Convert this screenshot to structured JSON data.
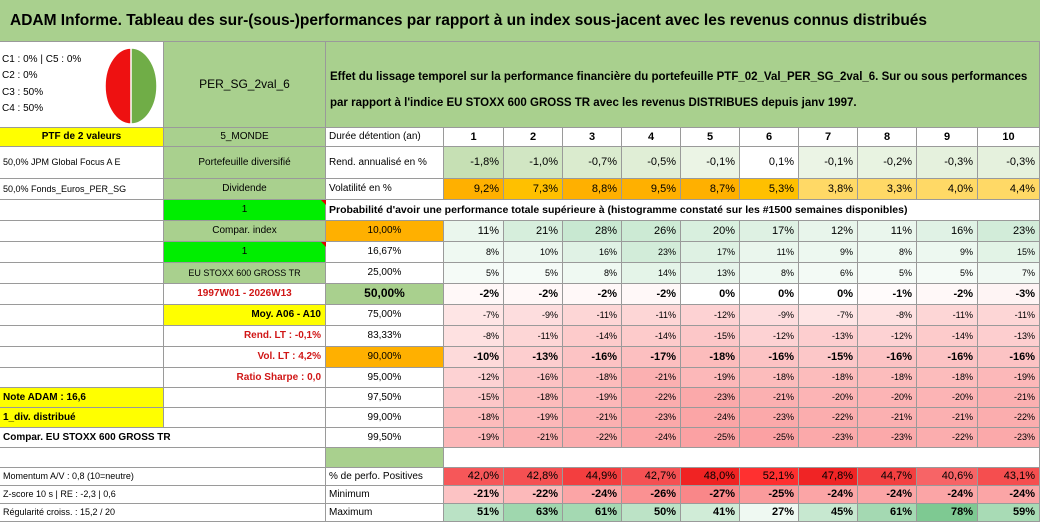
{
  "title": "ADAM Informe. Tableau des sur-(sous-)performances par rapport à un index sous-jacent avec les revenus connus distribués",
  "left": {
    "legend": [
      "C1 : 0% | C5 : 0%",
      "C2 : 0%",
      "C3 : 50%",
      "C4 : 50%"
    ],
    "portfolio_name": "PER_SG_2val_6",
    "ptf_label": "PTF de 2 valeurs",
    "zone": "5_MONDE",
    "holdings": [
      "50,0% JPM Global Focus A E",
      "50,0% Fonds_Euros_PER_SG"
    ],
    "type_label": "Portefeuille diversifié",
    "dividend_label": "Dividende",
    "one_a": "1",
    "compar_index": "Compar. index",
    "one_b": "1",
    "index_name": "EU STOXX 600 GROSS TR",
    "period": "1997W01 - 2026W13",
    "moy": "Moy. A06 - A10",
    "rend_lt": "Rend. LT : -0,1%",
    "vol_lt": "Vol. LT : 4,2%",
    "sharpe": "Ratio Sharpe : 0,0",
    "note": "Note ADAM : 16,6",
    "div": "1_div. distribué",
    "compar_full": "Compar. EU STOXX 600 GROSS TR",
    "momentum": "Momentum A/V : 0,8 (10=neutre)",
    "zscore": "Z-score 10 s | RE : -2,3 | 0,6",
    "regularite": "Régularité croiss. : 15,2 / 20"
  },
  "pie": {
    "red_share": 0.5,
    "red_color": "#ee1111",
    "green_color": "#70ad47"
  },
  "description": "Effet du lissage temporel sur la performance financière du portefeuille PTF_02_Val_PER_SG_2val_6. Sur ou sous performances par rapport à l'indice EU STOXX 600 GROSS TR avec les revenus DISTRIBUES depuis janv 1997.",
  "duration_label": "Durée détention (an)",
  "years": [
    "1",
    "2",
    "3",
    "4",
    "5",
    "6",
    "7",
    "8",
    "9",
    "10"
  ],
  "rend_label": "Rend. annualisé en %",
  "rend": [
    "-1,8%",
    "-1,0%",
    "-0,7%",
    "-0,5%",
    "-0,1%",
    "0,1%",
    "-0,1%",
    "-0,2%",
    "-0,3%",
    "-0,3%"
  ],
  "vol_label": "Volatilité en %",
  "vol": [
    "9,2%",
    "7,3%",
    "8,8%",
    "9,5%",
    "8,7%",
    "5,3%",
    "3,8%",
    "3,3%",
    "4,0%",
    "4,4%"
  ],
  "prob_header": "Probabilité d'avoir une performance totale supérieure à (histogramme constaté sur les #1500 semaines disponibles)",
  "quantiles": [
    {
      "label": "10,00%",
      "values": [
        "11%",
        "21%",
        "28%",
        "26%",
        "20%",
        "17%",
        "12%",
        "11%",
        "16%",
        "23%"
      ]
    },
    {
      "label": "16,67%",
      "values": [
        "8%",
        "10%",
        "16%",
        "23%",
        "17%",
        "11%",
        "9%",
        "8%",
        "9%",
        "15%"
      ]
    },
    {
      "label": "25,00%",
      "values": [
        "5%",
        "5%",
        "8%",
        "14%",
        "13%",
        "8%",
        "6%",
        "5%",
        "5%",
        "7%"
      ]
    },
    {
      "label": "50,00%",
      "values": [
        "-2%",
        "-2%",
        "-2%",
        "-2%",
        "0%",
        "0%",
        "0%",
        "-1%",
        "-2%",
        "-3%"
      ]
    },
    {
      "label": "75,00%",
      "values": [
        "-7%",
        "-9%",
        "-11%",
        "-11%",
        "-12%",
        "-9%",
        "-7%",
        "-8%",
        "-11%",
        "-11%"
      ]
    },
    {
      "label": "83,33%",
      "values": [
        "-8%",
        "-11%",
        "-14%",
        "-14%",
        "-15%",
        "-12%",
        "-13%",
        "-12%",
        "-14%",
        "-13%"
      ]
    },
    {
      "label": "90,00%",
      "values": [
        "-10%",
        "-13%",
        "-16%",
        "-17%",
        "-18%",
        "-16%",
        "-15%",
        "-16%",
        "-16%",
        "-16%"
      ]
    },
    {
      "label": "95,00%",
      "values": [
        "-12%",
        "-16%",
        "-18%",
        "-21%",
        "-19%",
        "-18%",
        "-18%",
        "-18%",
        "-18%",
        "-19%"
      ]
    },
    {
      "label": "97,50%",
      "values": [
        "-15%",
        "-18%",
        "-19%",
        "-22%",
        "-23%",
        "-21%",
        "-20%",
        "-20%",
        "-20%",
        "-21%"
      ]
    },
    {
      "label": "99,00%",
      "values": [
        "-18%",
        "-19%",
        "-21%",
        "-23%",
        "-24%",
        "-23%",
        "-22%",
        "-21%",
        "-21%",
        "-22%"
      ]
    },
    {
      "label": "99,50%",
      "values": [
        "-19%",
        "-21%",
        "-22%",
        "-24%",
        "-25%",
        "-25%",
        "-23%",
        "-23%",
        "-22%",
        "-23%"
      ]
    }
  ],
  "pct_pos_label": "% de perfo. Positives",
  "pct_pos": [
    "42,0%",
    "42,8%",
    "44,9%",
    "42,7%",
    "48,0%",
    "52,1%",
    "47,8%",
    "44,7%",
    "40,6%",
    "43,1%"
  ],
  "min_label": "Minimum",
  "min": [
    "-21%",
    "-22%",
    "-24%",
    "-26%",
    "-27%",
    "-25%",
    "-24%",
    "-24%",
    "-24%",
    "-24%"
  ],
  "max_label": "Maximum",
  "max": [
    "51%",
    "63%",
    "61%",
    "50%",
    "41%",
    "27%",
    "45%",
    "61%",
    "78%",
    "59%"
  ],
  "colors": {
    "green": "#a9d08e",
    "bright_green": "#00ee00",
    "yellow": "#ffff00",
    "orange": "#ffb000",
    "red": "#d01616"
  }
}
